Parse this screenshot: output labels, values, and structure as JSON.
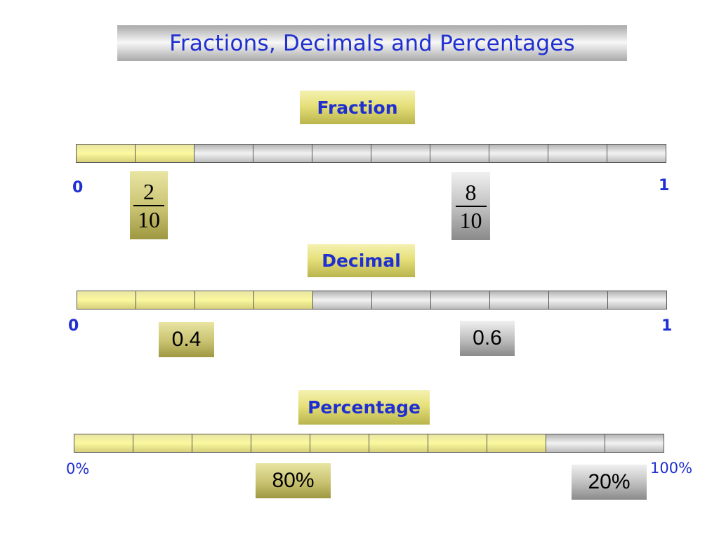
{
  "title": "Fractions, Decimals and Percentages",
  "sections": {
    "fraction": {
      "label": "Fraction",
      "start_label": "0",
      "end_label": "1",
      "segments_total": 10,
      "segments_filled": 2,
      "value_numerator": "2",
      "value_denominator": "10",
      "complement_numerator": "8",
      "complement_denominator": "10"
    },
    "decimal": {
      "label": "Decimal",
      "start_label": "0",
      "end_label": "1",
      "segments_total": 10,
      "segments_filled": 4,
      "value": "0.4",
      "complement": "0.6"
    },
    "percentage": {
      "label": "Percentage",
      "start_label": "0%",
      "end_label": "100%",
      "segments_total": 10,
      "segments_filled": 8,
      "value": "80%",
      "complement": "20%"
    }
  },
  "colors": {
    "title_text": "#1f2fd0",
    "filled_segment": "#fbf89f",
    "empty_segment": "#d9d9d9"
  }
}
